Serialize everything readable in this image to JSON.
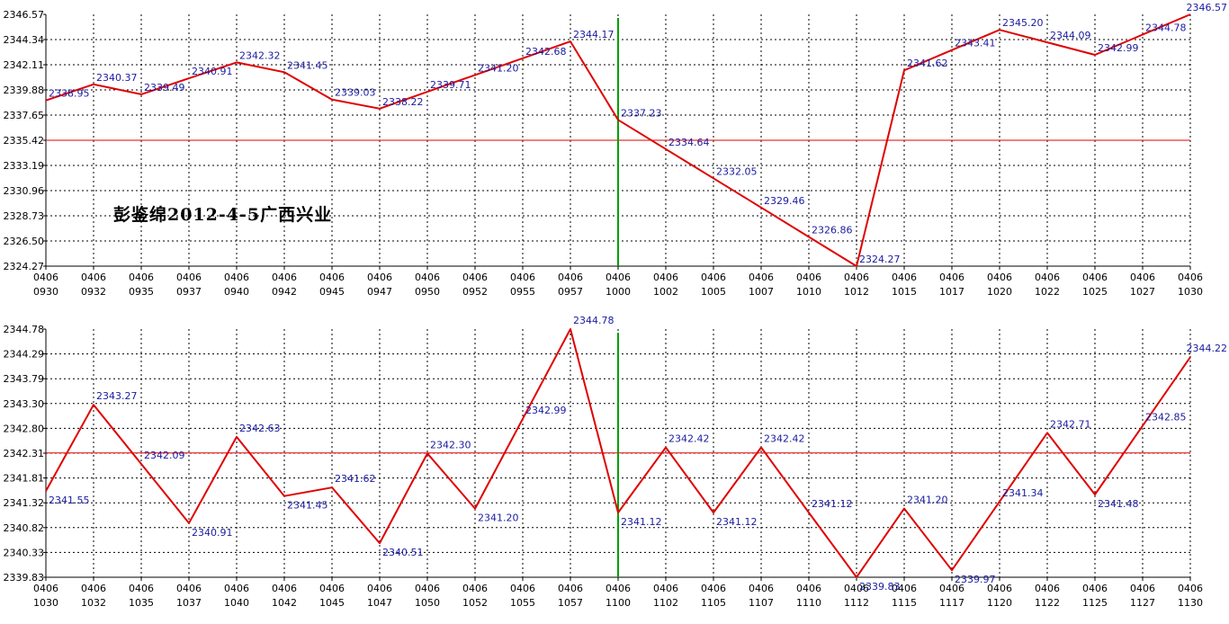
{
  "annotation": "彭鉴绵2012-4-5广西兴业",
  "colors": {
    "line": "#e00000",
    "label": "#1a1aa0",
    "reference": "#e00000",
    "divider": "#00a000",
    "grid": "#000000"
  },
  "chart_data": [
    {
      "type": "line",
      "x": [
        "04060930",
        "04060932",
        "04060935",
        "04060937",
        "04060940",
        "04060942",
        "04060945",
        "04060947",
        "04060950",
        "04060952",
        "04060955",
        "04060957",
        "04061000",
        "04061002",
        "04061005",
        "04061007",
        "04061010",
        "04061012",
        "04061015",
        "04061017",
        "04061020",
        "04061022",
        "04061025",
        "04061027",
        "04061030"
      ],
      "x_tick_labels": [
        [
          "0406",
          "0930"
        ],
        [
          "0406",
          "0932"
        ],
        [
          "0406",
          "0935"
        ],
        [
          "0406",
          "0937"
        ],
        [
          "0406",
          "0940"
        ],
        [
          "0406",
          "0942"
        ],
        [
          "0406",
          "0945"
        ],
        [
          "0406",
          "0947"
        ],
        [
          "0406",
          "0950"
        ],
        [
          "0406",
          "0952"
        ],
        [
          "0406",
          "0955"
        ],
        [
          "0406",
          "0957"
        ],
        [
          "0406",
          "1000"
        ],
        [
          "0406",
          "1002"
        ],
        [
          "0406",
          "1005"
        ],
        [
          "0406",
          "1007"
        ],
        [
          "0406",
          "1010"
        ],
        [
          "0406",
          "1012"
        ],
        [
          "0406",
          "1015"
        ],
        [
          "0406",
          "1017"
        ],
        [
          "0406",
          "1020"
        ],
        [
          "0406",
          "1022"
        ],
        [
          "0406",
          "1025"
        ],
        [
          "0406",
          "1027"
        ],
        [
          "0406",
          "1030"
        ]
      ],
      "values": [
        2338.95,
        2340.37,
        2339.49,
        2340.91,
        2342.32,
        2341.45,
        2339.03,
        2338.22,
        2339.71,
        2341.2,
        2342.68,
        2344.17,
        2337.23,
        2334.64,
        2332.05,
        2329.46,
        2326.86,
        2324.27,
        2341.62,
        2343.41,
        2345.2,
        2344.09,
        2342.99,
        2344.78,
        2346.57
      ],
      "data_labels": [
        "2338.95",
        "2340.37",
        "2339.49",
        "2340.91",
        "2342.32",
        "2341.45",
        "2339.03",
        "2338.22",
        "2339.71",
        "2341.20",
        "2342.68",
        "2344.17",
        "2337.23",
        "2334.64",
        "2332.05",
        "2329.46",
        "2326.86",
        "2324.27",
        "2341.62",
        "2343.41",
        "2345.20",
        "2344.09",
        "2342.99",
        "2344.78",
        "2346.57"
      ],
      "y_ticks": [
        "2346.57",
        "2344.34",
        "2342.11",
        "2339.88",
        "2337.65",
        "2335.42",
        "2333.19",
        "2330.96",
        "2328.73",
        "2326.50",
        "2324.27"
      ],
      "ylim": [
        2324.27,
        2346.57
      ],
      "reference_line": 2335.42,
      "divider_index": 12,
      "grid": true
    },
    {
      "type": "line",
      "x": [
        "04061030",
        "04061032",
        "04061035",
        "04061037",
        "04061040",
        "04061042",
        "04061045",
        "04061047",
        "04061050",
        "04061052",
        "04061055",
        "04061057",
        "04061100",
        "04061102",
        "04061105",
        "04061107",
        "04061110",
        "04061112",
        "04061115",
        "04061117",
        "04061120",
        "04061122",
        "04061125",
        "04061127",
        "04061130"
      ],
      "x_tick_labels": [
        [
          "0406",
          "1030"
        ],
        [
          "0406",
          "1032"
        ],
        [
          "0406",
          "1035"
        ],
        [
          "0406",
          "1037"
        ],
        [
          "0406",
          "1040"
        ],
        [
          "0406",
          "1042"
        ],
        [
          "0406",
          "1045"
        ],
        [
          "0406",
          "1047"
        ],
        [
          "0406",
          "1050"
        ],
        [
          "0406",
          "1052"
        ],
        [
          "0406",
          "1055"
        ],
        [
          "0406",
          "1057"
        ],
        [
          "0406",
          "1100"
        ],
        [
          "0406",
          "1102"
        ],
        [
          "0406",
          "1105"
        ],
        [
          "0406",
          "1107"
        ],
        [
          "0406",
          "1110"
        ],
        [
          "0406",
          "1112"
        ],
        [
          "0406",
          "1115"
        ],
        [
          "0406",
          "1117"
        ],
        [
          "0406",
          "1120"
        ],
        [
          "0406",
          "1122"
        ],
        [
          "0406",
          "1125"
        ],
        [
          "0406",
          "1127"
        ],
        [
          "0406",
          "1130"
        ]
      ],
      "values": [
        2341.55,
        2343.27,
        2342.09,
        2340.91,
        2342.63,
        2341.45,
        2341.62,
        2340.51,
        2342.3,
        2341.2,
        2342.99,
        2344.78,
        2341.12,
        2342.42,
        2341.12,
        2342.42,
        2341.12,
        2339.83,
        2341.2,
        2339.97,
        2341.34,
        2342.71,
        2341.48,
        2342.85,
        2344.22
      ],
      "data_labels": [
        "2341.55",
        "2343.27",
        "2342.09",
        "2340.91",
        "2342.63",
        "2341.45",
        "2341.62",
        "2340.51",
        "2342.30",
        "2341.20",
        "2342.99",
        "2344.78",
        "2341.12",
        "2342.42",
        "2341.12",
        "2342.42",
        "2341.12",
        "2339.83",
        "2341.20",
        "2339.97",
        "2341.34",
        "2342.71",
        "2341.48",
        "2342.85",
        "2344.22"
      ],
      "y_ticks": [
        "2344.78",
        "2344.29",
        "2343.79",
        "2343.30",
        "2342.80",
        "2342.31",
        "2341.81",
        "2341.32",
        "2340.82",
        "2340.33",
        "2339.83"
      ],
      "ylim": [
        2339.83,
        2344.78
      ],
      "reference_line": 2342.31,
      "divider_index": 12,
      "grid": true
    }
  ]
}
